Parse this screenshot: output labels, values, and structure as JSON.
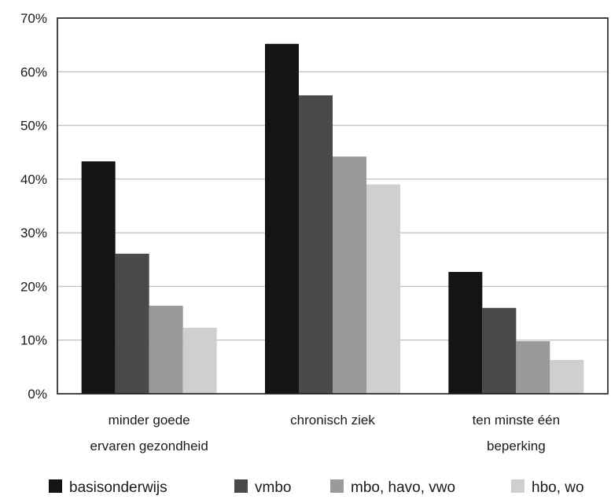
{
  "chart_data": {
    "type": "bar",
    "title": "",
    "xlabel": "",
    "ylabel": "",
    "ylim": [
      0,
      70
    ],
    "y_ticks": [
      "0%",
      "10%",
      "20%",
      "30%",
      "40%",
      "50%",
      "60%",
      "70%"
    ],
    "y_tick_values": [
      0,
      10,
      20,
      30,
      40,
      50,
      60,
      70
    ],
    "categories": [
      [
        "minder goede",
        "ervaren gezondheid"
      ],
      [
        "chronisch ziek"
      ],
      [
        "ten minste één",
        "beperking"
      ]
    ],
    "series": [
      {
        "name": "basisonderwijs",
        "color": "#141414",
        "values": [
          43.3,
          65.2,
          22.7
        ]
      },
      {
        "name": "vmbo",
        "color": "#4a4a4a",
        "values": [
          26.1,
          55.6,
          16.0
        ]
      },
      {
        "name": "mbo, havo, vwo",
        "color": "#9a9a9a",
        "values": [
          16.4,
          44.2,
          9.8
        ]
      },
      {
        "name": "hbo, wo",
        "color": "#cfcfcf",
        "values": [
          12.3,
          39.0,
          6.3
        ]
      }
    ],
    "grid": true,
    "legend": "bottom"
  }
}
